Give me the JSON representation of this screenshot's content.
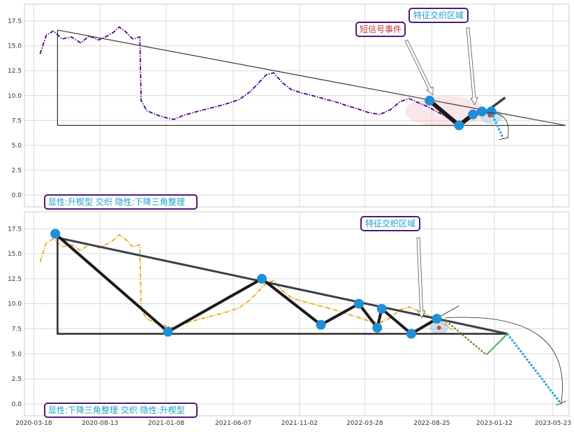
{
  "chart_data": [
    {
      "type": "line",
      "series_color": "#4b0082",
      "ylim": [
        -1.2,
        19.2
      ],
      "yticks": [
        0.0,
        2.5,
        5.0,
        7.5,
        10.0,
        12.5,
        15.0,
        17.5
      ],
      "ytick_labels": [
        "0.0",
        "2.5",
        "5.0",
        "7.5",
        "10.0",
        "12.5",
        "15.0",
        "17.5"
      ],
      "price_series": [
        [
          "2020-04-01",
          14.2
        ],
        [
          "2020-04-15",
          16.1
        ],
        [
          "2020-05-01",
          16.5
        ],
        [
          "2020-05-20",
          15.7
        ],
        [
          "2020-06-10",
          15.9
        ],
        [
          "2020-07-01",
          15.3
        ],
        [
          "2020-07-20",
          16.0
        ],
        [
          "2020-08-10",
          15.6
        ],
        [
          "2020-08-25",
          15.9
        ],
        [
          "2020-09-10",
          16.3
        ],
        [
          "2020-09-25",
          16.9
        ],
        [
          "2020-10-10",
          16.4
        ],
        [
          "2020-10-25",
          15.7
        ],
        [
          "2020-11-10",
          15.9
        ],
        [
          "2020-11-13",
          9.5
        ],
        [
          "2020-11-25",
          8.5
        ],
        [
          "2020-12-15",
          8.1
        ],
        [
          "2021-01-05",
          7.8
        ],
        [
          "2021-01-25",
          7.6
        ],
        [
          "2021-02-15",
          8.0
        ],
        [
          "2021-03-10",
          8.3
        ],
        [
          "2021-04-05",
          8.6
        ],
        [
          "2021-05-01",
          8.9
        ],
        [
          "2021-05-25",
          9.2
        ],
        [
          "2021-06-20",
          9.6
        ],
        [
          "2021-07-15",
          10.4
        ],
        [
          "2021-08-01",
          11.2
        ],
        [
          "2021-08-20",
          12.1
        ],
        [
          "2021-09-05",
          12.3
        ],
        [
          "2021-09-25",
          11.3
        ],
        [
          "2021-10-15",
          10.6
        ],
        [
          "2021-11-05",
          10.3
        ],
        [
          "2021-12-01",
          10.0
        ],
        [
          "2021-12-25",
          9.7
        ],
        [
          "2022-01-20",
          9.4
        ],
        [
          "2022-02-15",
          9.0
        ],
        [
          "2022-03-10",
          8.7
        ],
        [
          "2022-04-05",
          8.3
        ],
        [
          "2022-05-01",
          8.1
        ],
        [
          "2022-05-25",
          8.6
        ],
        [
          "2022-06-15",
          9.4
        ],
        [
          "2022-07-05",
          9.7
        ],
        [
          "2022-07-25",
          9.3
        ],
        [
          "2022-08-15",
          8.9
        ],
        [
          "2022-09-05",
          8.4
        ],
        [
          "2022-09-25",
          7.9
        ],
        [
          "2022-10-10",
          7.4
        ]
      ],
      "triangle": [
        [
          "2020-05-10",
          16.6
        ],
        [
          "2020-05-10",
          7.0
        ],
        [
          "2023-06-20",
          7.0
        ]
      ],
      "zigzag_points": [
        [
          "2022-08-20",
          9.5
        ],
        [
          "2022-10-25",
          7.0
        ],
        [
          "2022-11-25",
          8.1
        ],
        [
          "2022-12-15",
          8.4
        ],
        [
          "2023-01-05",
          8.4
        ]
      ],
      "forecast_fan": [
        [
          "2022-12-25",
          8.4
        ],
        [
          "2023-02-05",
          9.8
        ]
      ],
      "forecast_arc_end": [
        "2023-02-10",
        5.7
      ],
      "callouts": [
        {
          "text": "特征交织区域",
          "text_color": "#1f9dc6"
        },
        {
          "text": "短信号事件",
          "text_color": "#c0392b"
        }
      ],
      "footer_label": "显性:升楔型 交织 隐性:下降三角整理"
    },
    {
      "type": "line",
      "series_color": "#e8a317",
      "ylim": [
        -1.2,
        19.2
      ],
      "yticks": [
        0.0,
        2.5,
        5.0,
        7.5,
        10.0,
        12.5,
        15.0,
        17.5
      ],
      "ytick_labels": [
        "0.0",
        "2.5",
        "5.0",
        "7.5",
        "10.0",
        "12.5",
        "15.0",
        "17.5"
      ],
      "xticks": [
        "2020-03-18",
        "2020-08-13",
        "2021-01-08",
        "2021-06-07",
        "2021-11-02",
        "2022-03-28",
        "2022-08-25",
        "2023-01-12",
        "2023-05-23"
      ],
      "xtick_labels": [
        "2020-03-18",
        "2020-08-13",
        "2021-01-08",
        "2021-06-07",
        "2021-11-02",
        "2022-03-28",
        "2022-08-25",
        "2023-01-12",
        "2023-05-23"
      ],
      "price_series": [
        [
          "2020-04-01",
          14.2
        ],
        [
          "2020-04-15",
          16.1
        ],
        [
          "2020-05-01",
          16.5
        ],
        [
          "2020-05-20",
          15.7
        ],
        [
          "2020-06-10",
          15.9
        ],
        [
          "2020-07-01",
          15.3
        ],
        [
          "2020-07-20",
          16.0
        ],
        [
          "2020-08-10",
          15.6
        ],
        [
          "2020-08-25",
          15.9
        ],
        [
          "2020-09-10",
          16.3
        ],
        [
          "2020-09-25",
          16.9
        ],
        [
          "2020-10-10",
          16.4
        ],
        [
          "2020-10-25",
          15.7
        ],
        [
          "2020-11-10",
          15.9
        ],
        [
          "2020-11-13",
          9.5
        ],
        [
          "2020-11-25",
          8.5
        ],
        [
          "2020-12-15",
          8.1
        ],
        [
          "2021-01-05",
          7.8
        ],
        [
          "2021-01-25",
          7.6
        ],
        [
          "2021-02-15",
          8.0
        ],
        [
          "2021-03-10",
          8.3
        ],
        [
          "2021-04-05",
          8.6
        ],
        [
          "2021-05-01",
          8.9
        ],
        [
          "2021-05-25",
          9.2
        ],
        [
          "2021-06-20",
          9.6
        ],
        [
          "2021-07-15",
          10.4
        ],
        [
          "2021-08-01",
          11.2
        ],
        [
          "2021-08-20",
          12.1
        ],
        [
          "2021-09-05",
          12.3
        ],
        [
          "2021-09-25",
          11.3
        ],
        [
          "2021-10-15",
          10.6
        ],
        [
          "2021-11-05",
          10.3
        ],
        [
          "2021-12-01",
          10.0
        ],
        [
          "2021-12-25",
          9.7
        ],
        [
          "2022-01-20",
          9.4
        ],
        [
          "2022-02-15",
          9.0
        ],
        [
          "2022-03-10",
          8.7
        ],
        [
          "2022-04-05",
          8.3
        ],
        [
          "2022-05-01",
          8.1
        ],
        [
          "2022-05-25",
          8.6
        ],
        [
          "2022-06-15",
          9.4
        ],
        [
          "2022-07-05",
          9.7
        ],
        [
          "2022-07-25",
          9.3
        ],
        [
          "2022-08-15",
          8.9
        ],
        [
          "2022-09-05",
          8.4
        ],
        [
          "2022-09-25",
          7.9
        ],
        [
          "2022-10-10",
          7.4
        ]
      ],
      "triangle": [
        [
          "2020-05-10",
          16.6
        ],
        [
          "2020-05-10",
          7.0
        ],
        [
          "2023-02-10",
          7.0
        ]
      ],
      "descending_line": [
        [
          "2020-05-10",
          16.6
        ],
        [
          "2023-02-10",
          7.0
        ]
      ],
      "zigzag_points": [
        [
          "2020-05-05",
          17.0
        ],
        [
          "2021-01-12",
          7.2
        ],
        [
          "2021-08-10",
          12.5
        ],
        [
          "2021-12-20",
          7.9
        ],
        [
          "2022-03-15",
          10.0
        ],
        [
          "2022-04-25",
          7.6
        ],
        [
          "2022-05-05",
          9.5
        ],
        [
          "2022-07-10",
          7.0
        ],
        [
          "2022-09-05",
          8.5
        ]
      ],
      "projection_points": [
        [
          "2022-09-20",
          8.5
        ],
        [
          "2022-12-25",
          4.9
        ],
        [
          "2023-02-10",
          7.0
        ],
        [
          "2023-06-10",
          0.0
        ]
      ],
      "forecast_fan": [
        [
          "2022-08-10",
          7.9
        ],
        [
          "2022-10-25",
          9.8
        ]
      ],
      "callouts": [
        {
          "text": "特征交织区域",
          "text_color": "#1f9dc6"
        }
      ],
      "footer_label": "显性:下降三角整理 交织 隐性:升楔型"
    }
  ]
}
